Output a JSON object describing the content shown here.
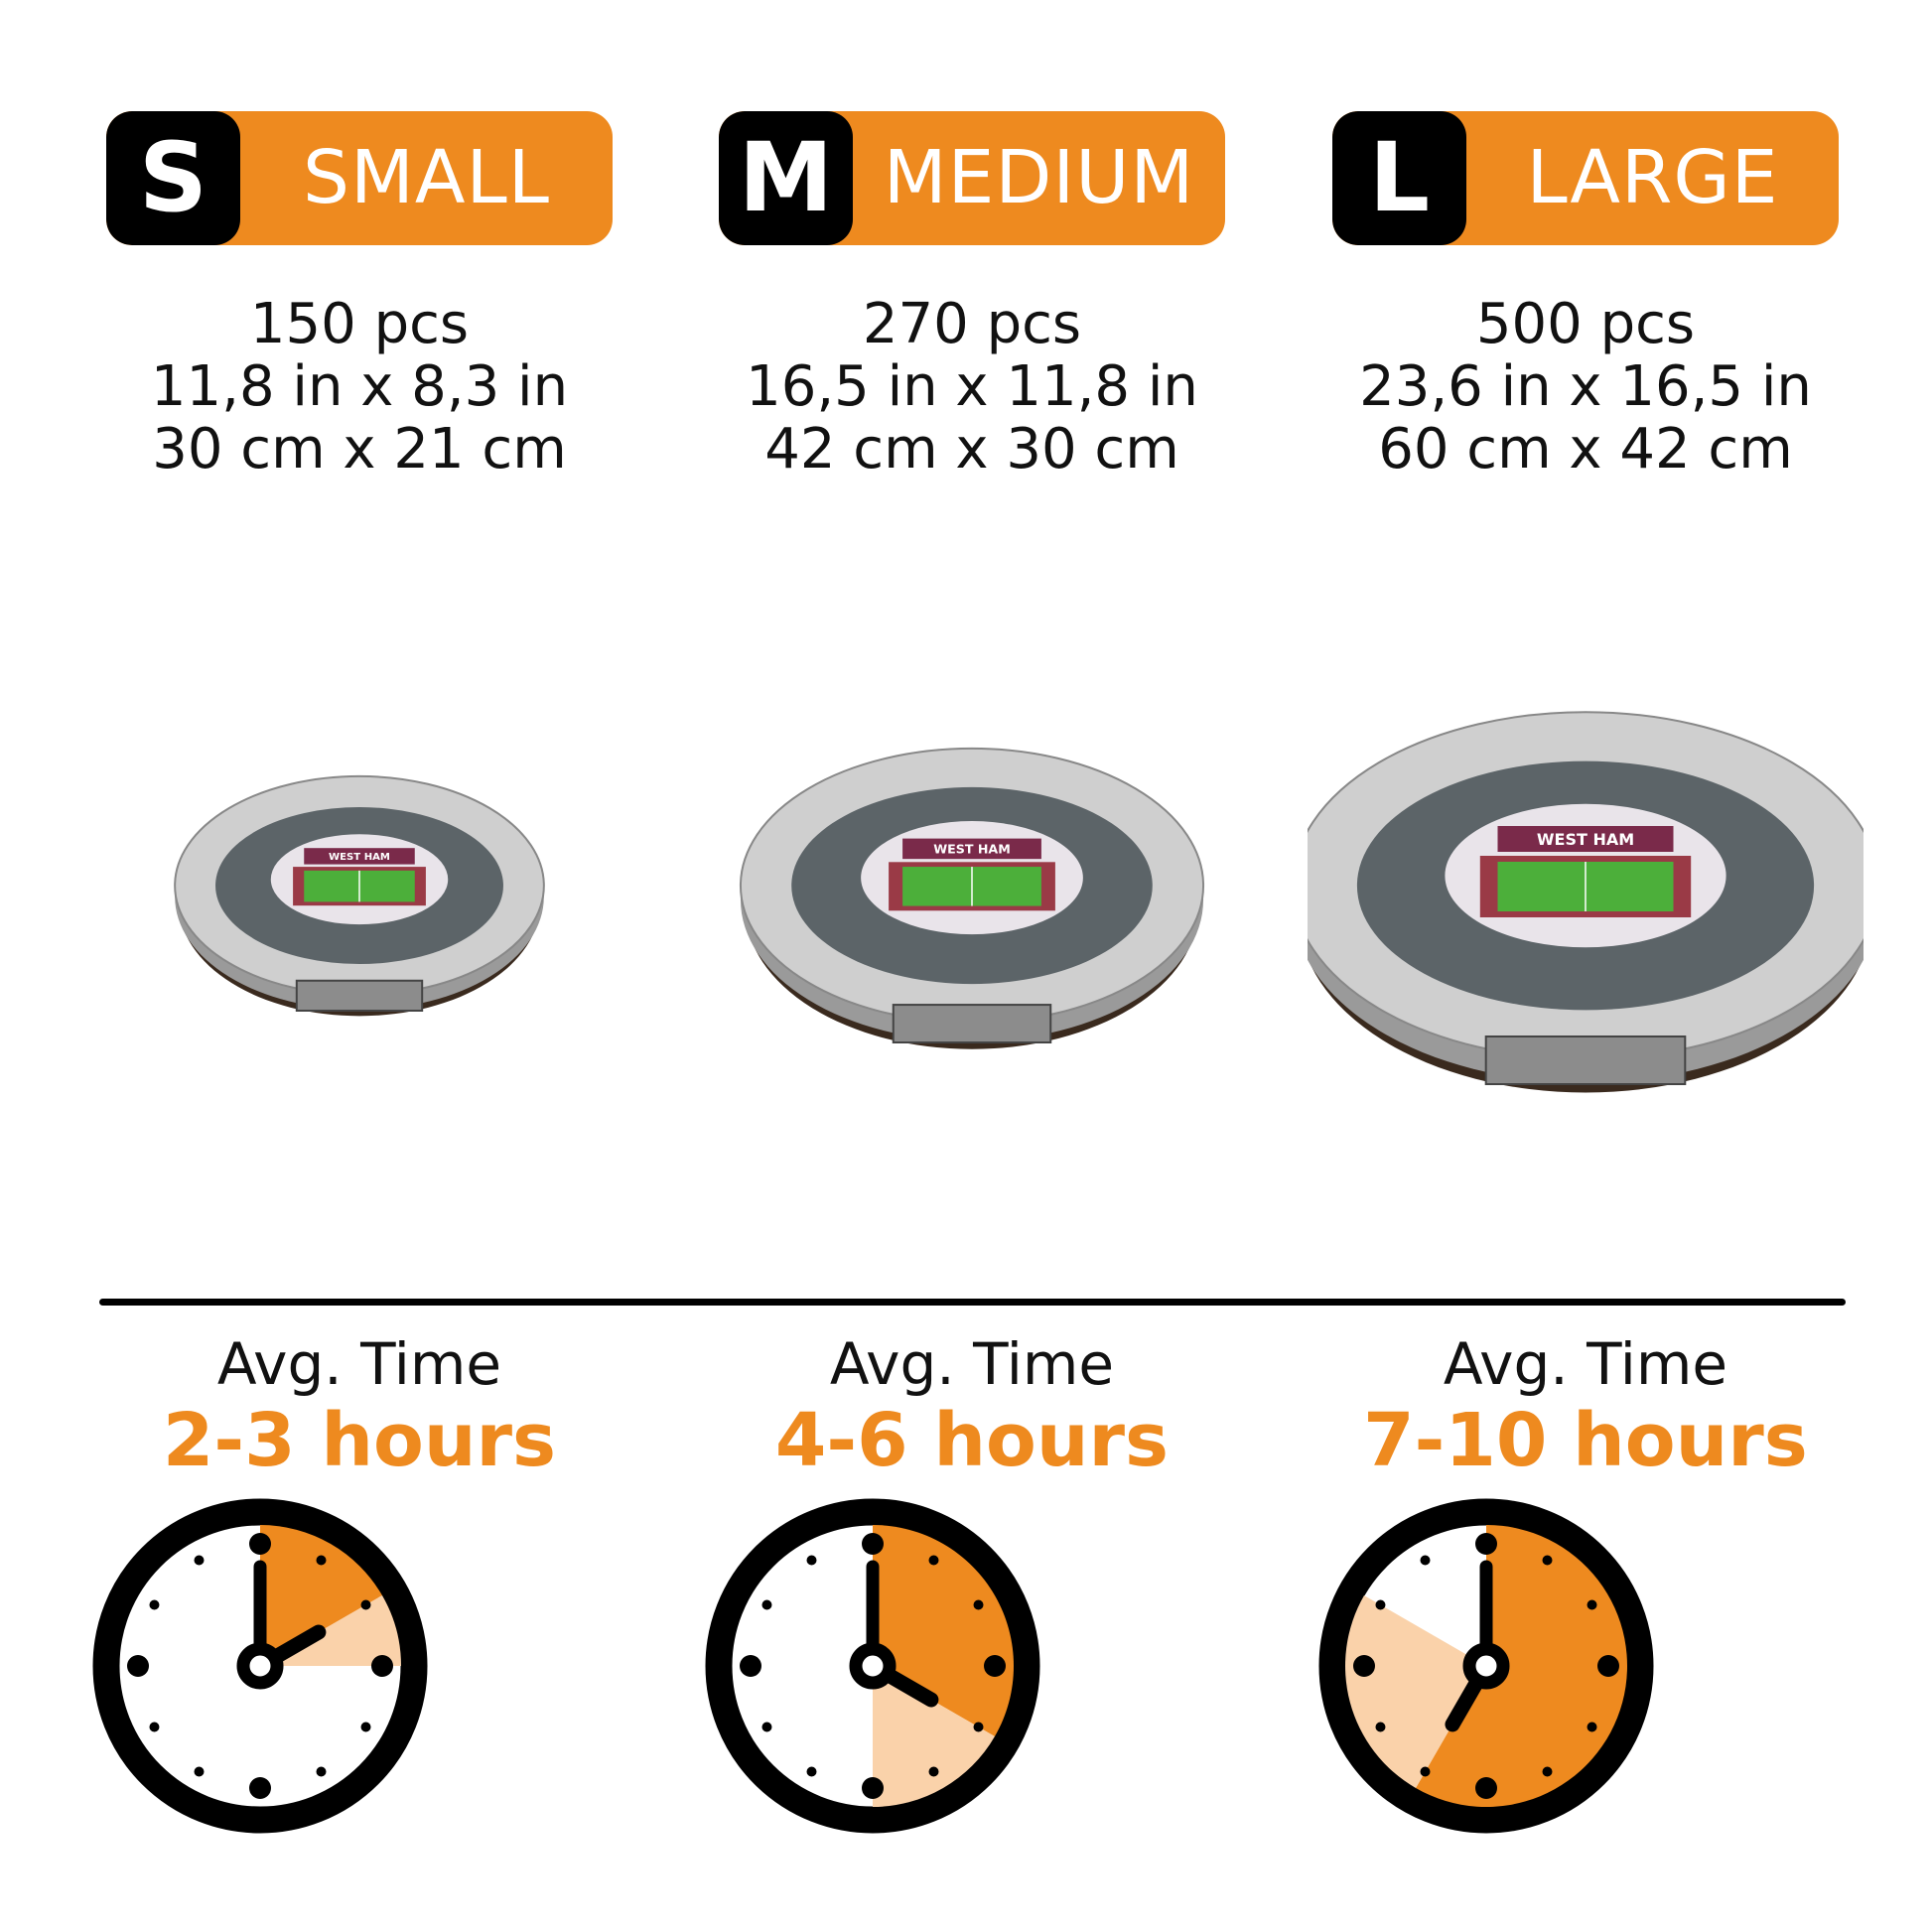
{
  "colors": {
    "accent": "#EE8A1F",
    "accent_light": "#FAD2AA",
    "dark": "#000000"
  },
  "sizes": [
    {
      "letter": "S",
      "label": "SMALL",
      "pieces": "150 pcs",
      "inches": "11,8 in x 8,3 in",
      "cm": "30 cm x 21 cm",
      "avg_label": "Avg. Time",
      "hours": "2-3 hours",
      "clock": {
        "min_hours": 2,
        "max_hours": 3
      }
    },
    {
      "letter": "M",
      "label": "MEDIUM",
      "pieces": "270 pcs",
      "inches": "16,5 in x 11,8 in",
      "cm": "42 cm x 30 cm",
      "avg_label": "Avg. Time",
      "hours": "4-6 hours",
      "clock": {
        "min_hours": 4,
        "max_hours": 6
      }
    },
    {
      "letter": "L",
      "label": "LARGE",
      "pieces": "500 pcs",
      "inches": "23,6 in x 16,5 in",
      "cm": "60 cm x 42 cm",
      "avg_label": "Avg. Time",
      "hours": "7-10 hours",
      "clock": {
        "min_hours": 7,
        "max_hours": 10
      }
    }
  ],
  "stadium_banner_text": "WEST HAM"
}
